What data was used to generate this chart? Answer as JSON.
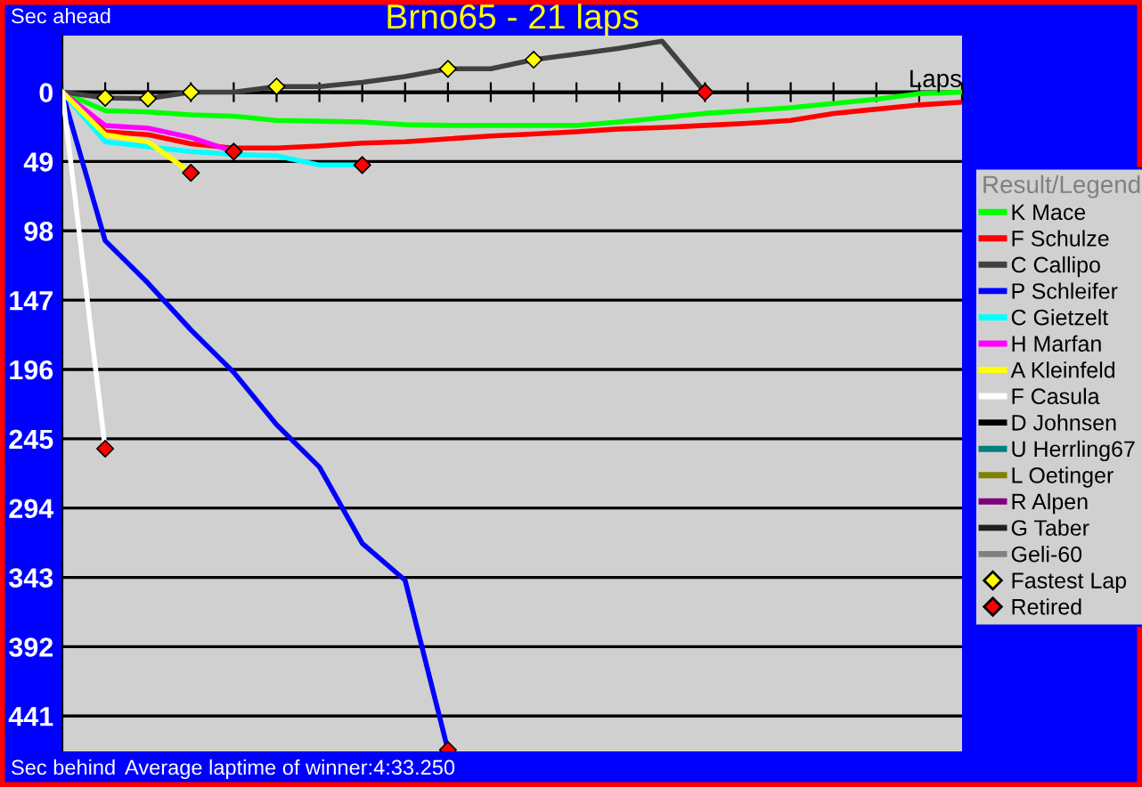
{
  "chart_data": {
    "type": "line",
    "title": "Brno65 - 21 laps",
    "xlabel": "Laps",
    "legend_title": "Result/Legend",
    "annotations": [
      "Sec ahead",
      "Sec behind",
      "Average laptime of winner:4:33.250"
    ],
    "categories": [
      null,
      null,
      null,
      null,
      null,
      null,
      null,
      null,
      null,
      null,
      null,
      null,
      null,
      null,
      null,
      null,
      null,
      null,
      null,
      null,
      null,
      null
    ],
    "series": [
      {
        "name": "K Mace",
        "color": "#00ff00",
        "values": [
          0,
          13,
          14,
          16,
          17,
          20,
          20.5,
          21,
          23,
          23.5,
          23.5,
          23.5,
          23.5,
          21,
          18,
          15,
          13,
          11,
          8,
          5,
          1,
          0
        ]
      },
      {
        "name": "F Schulze",
        "color": "#ff0000",
        "values": [
          0,
          28,
          30,
          36.5,
          39.5,
          39.5,
          38,
          36,
          35,
          33,
          31,
          29.5,
          28,
          26,
          25,
          23.5,
          22,
          20,
          15,
          12,
          9,
          7
        ]
      },
      {
        "name": "C Callipo",
        "color": "#404040",
        "values": [
          0,
          4,
          4.5,
          0,
          0,
          -4,
          -4,
          -7,
          -11,
          -16.5,
          -16.5,
          -23,
          -27,
          -31,
          -36,
          0,
          null,
          null,
          null,
          null,
          null,
          null
        ]
      },
      {
        "name": "P Schleifer",
        "color": "#0000ff",
        "values": [
          0,
          105,
          135,
          168,
          198,
          235,
          265,
          319,
          345,
          465,
          null,
          null,
          null,
          null,
          null,
          null,
          null,
          null,
          null,
          null,
          null,
          null
        ]
      },
      {
        "name": "C Gietzelt",
        "color": "#00ffff",
        "values": [
          0,
          35,
          38.5,
          42,
          44,
          45,
          51.5,
          51.5,
          null,
          null,
          null,
          null,
          null,
          null,
          null,
          null,
          null,
          null,
          null,
          null,
          null,
          null
        ]
      },
      {
        "name": "H Marfan",
        "color": "#ff00ff",
        "values": [
          0,
          23.5,
          25.5,
          32,
          42,
          null,
          null,
          null,
          null,
          null,
          null,
          null,
          null,
          null,
          null,
          null,
          null,
          null,
          null,
          null,
          null,
          null
        ]
      },
      {
        "name": "A Kleinfeld",
        "color": "#ffff00",
        "values": [
          0,
          30,
          35,
          57,
          null,
          null,
          null,
          null,
          null,
          null,
          null,
          null,
          null,
          null,
          null,
          null,
          null,
          null,
          null,
          null,
          null,
          null
        ]
      },
      {
        "name": "F Casula",
        "color": "#ffffff",
        "values": [
          0,
          252,
          null,
          null,
          null,
          null,
          null,
          null,
          null,
          null,
          null,
          null,
          null,
          null,
          null,
          null,
          null,
          null,
          null,
          null,
          null,
          null
        ]
      },
      {
        "name": "D Johnsen",
        "color": "#000000",
        "values": [
          null,
          null,
          null,
          null,
          null,
          null,
          null,
          null,
          null,
          null,
          null,
          null,
          null,
          null,
          null,
          null,
          null,
          null,
          null,
          null,
          null,
          null
        ]
      },
      {
        "name": "U Herrling67",
        "color": "#008080",
        "values": [
          null,
          null,
          null,
          null,
          null,
          null,
          null,
          null,
          null,
          null,
          null,
          null,
          null,
          null,
          null,
          null,
          null,
          null,
          null,
          null,
          null,
          null
        ]
      },
      {
        "name": "L Oetinger",
        "color": "#808000",
        "values": [
          null,
          null,
          null,
          null,
          null,
          null,
          null,
          null,
          null,
          null,
          null,
          null,
          null,
          null,
          null,
          null,
          null,
          null,
          null,
          null,
          null,
          null
        ]
      },
      {
        "name": "R Alpen",
        "color": "#800080",
        "values": [
          null,
          null,
          null,
          null,
          null,
          null,
          null,
          null,
          null,
          null,
          null,
          null,
          null,
          null,
          null,
          null,
          null,
          null,
          null,
          null,
          null,
          null
        ]
      },
      {
        "name": "G Taber",
        "color": "#202020",
        "values": [
          null,
          null,
          null,
          null,
          null,
          null,
          null,
          null,
          null,
          null,
          null,
          null,
          null,
          null,
          null,
          null,
          null,
          null,
          null,
          null,
          null,
          null
        ]
      },
      {
        "name": "Geli-60",
        "color": "#808080",
        "values": [
          null,
          null,
          null,
          null,
          null,
          null,
          null,
          null,
          null,
          null,
          null,
          null,
          null,
          null,
          null,
          null,
          null,
          null,
          null,
          null,
          null,
          null
        ]
      },
      {
        "name": "Fastest Lap",
        "type": "scatter",
        "marker": "diamond",
        "color": "#ffff00",
        "values": [
          null,
          4,
          4.5,
          0,
          null,
          -4,
          null,
          null,
          null,
          -16.5,
          null,
          -23,
          null,
          null,
          null,
          null,
          null,
          null,
          null,
          null,
          null,
          null
        ]
      },
      {
        "name": "Retired",
        "type": "scatter",
        "marker": "diamond",
        "color": "#ff0000",
        "values": [
          null,
          252,
          null,
          57,
          42,
          null,
          null,
          51.5,
          null,
          465,
          null,
          null,
          null,
          null,
          null,
          0,
          null,
          null,
          null,
          null,
          null,
          null
        ]
      }
    ],
    "ylim": [
      466,
      -40
    ],
    "yticks": [
      0,
      49,
      98,
      147,
      196,
      245,
      294,
      343,
      392,
      441
    ],
    "tick_labels": "y",
    "grid": "y",
    "legend": "right",
    "marker": "none",
    "line_style": "solid"
  }
}
